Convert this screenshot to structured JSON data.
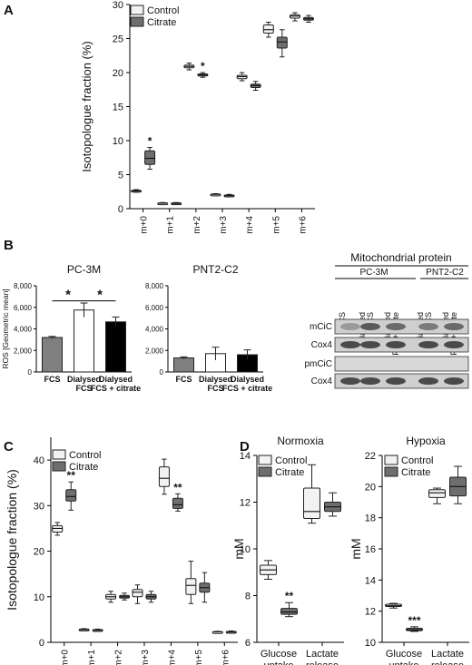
{
  "colors": {
    "control": "#f2f2f2",
    "citrate": "#6e6e6e",
    "fcs": "#808080",
    "dialysed": "#ffffff",
    "dialysed_citrate": "#000000"
  },
  "legend": {
    "control": "Control",
    "citrate": "Citrate"
  },
  "chart_data": [
    {
      "panel": "A",
      "type": "box",
      "ylabel": "Isotopologue fraction (%)",
      "ylim": [
        0,
        30
      ],
      "yticks": [
        0,
        5,
        10,
        15,
        20,
        25,
        30
      ],
      "categories": [
        "m+0",
        "m+1",
        "m+2",
        "m+3",
        "m+4",
        "m+5",
        "m+6"
      ],
      "legend_position": "top-left",
      "series": [
        {
          "name": "Control",
          "boxes": [
            {
              "min": 2.4,
              "q1": 2.5,
              "median": 2.6,
              "q3": 2.7,
              "max": 2.8
            },
            {
              "min": 0.7,
              "q1": 0.75,
              "median": 0.8,
              "q3": 0.85,
              "max": 0.9
            },
            {
              "min": 20.4,
              "q1": 20.7,
              "median": 20.9,
              "q3": 21.1,
              "max": 21.4
            },
            {
              "min": 1.9,
              "q1": 2.0,
              "median": 2.1,
              "q3": 2.15,
              "max": 2.2
            },
            {
              "min": 18.8,
              "q1": 19.1,
              "median": 19.4,
              "q3": 19.6,
              "max": 20.0
            },
            {
              "min": 25.2,
              "q1": 25.8,
              "median": 26.3,
              "q3": 27.0,
              "max": 27.4
            },
            {
              "min": 27.6,
              "q1": 28.0,
              "median": 28.3,
              "q3": 28.5,
              "max": 28.8
            }
          ]
        },
        {
          "name": "Citrate",
          "boxes": [
            {
              "min": 5.8,
              "q1": 6.5,
              "median": 7.4,
              "q3": 8.5,
              "max": 9.0
            },
            {
              "min": 0.7,
              "q1": 0.75,
              "median": 0.8,
              "q3": 0.85,
              "max": 0.9
            },
            {
              "min": 19.3,
              "q1": 19.5,
              "median": 19.7,
              "q3": 19.8,
              "max": 20.0
            },
            {
              "min": 1.8,
              "q1": 1.9,
              "median": 1.95,
              "q3": 2.0,
              "max": 2.1
            },
            {
              "min": 17.4,
              "q1": 17.8,
              "median": 18.1,
              "q3": 18.3,
              "max": 18.7
            },
            {
              "min": 22.3,
              "q1": 23.6,
              "median": 24.5,
              "q3": 25.2,
              "max": 26.3
            },
            {
              "min": 27.4,
              "q1": 27.7,
              "median": 27.9,
              "q3": 28.1,
              "max": 28.4
            }
          ]
        }
      ],
      "significance": [
        {
          "category": "m+0",
          "series": "Citrate",
          "label": "*"
        },
        {
          "category": "m+2",
          "series": "Citrate",
          "label": "*"
        }
      ]
    },
    {
      "panel": "B",
      "type": "bar",
      "title": "PC-3M",
      "ylabel": "ROS [Geometric mean]",
      "ylim": [
        0,
        8000
      ],
      "yticks": [
        0,
        2000,
        4000,
        6000,
        8000
      ],
      "ytick_labels": [
        "0",
        "2,000",
        "4,000",
        "6,000",
        "8,000"
      ],
      "categories": [
        "FCS",
        "Dialysed FCS",
        "Dialysed FCS + citrate"
      ],
      "values": [
        3200,
        5750,
        4650
      ],
      "errors": [
        100,
        650,
        450
      ],
      "significance": [
        {
          "from": 0,
          "to": 1,
          "label": "*"
        },
        {
          "from": 1,
          "to": 2,
          "label": "*"
        }
      ]
    },
    {
      "panel": "B",
      "type": "bar",
      "title": "PNT2-C2",
      "ylim": [
        0,
        8000
      ],
      "yticks": [
        0,
        2000,
        4000,
        6000,
        8000
      ],
      "ytick_labels": [
        "0",
        "2,000",
        "4,000",
        "6,000",
        "8,000"
      ],
      "categories": [
        "FCS",
        "Dialysed FCS",
        "Dialysed FCS + citrate"
      ],
      "values": [
        1300,
        1700,
        1600
      ],
      "errors": [
        100,
        600,
        450
      ]
    },
    {
      "panel": "C",
      "type": "box",
      "ylabel": "Isotopologue fraction (%)",
      "ylim": [
        0,
        45
      ],
      "yticks": [
        0,
        10,
        20,
        30,
        40
      ],
      "categories": [
        "m+0",
        "m+1",
        "m+2",
        "m+3",
        "m+4",
        "m+5",
        "m+6"
      ],
      "legend_position": "top-left",
      "series": [
        {
          "name": "Control",
          "boxes": [
            {
              "min": 23.5,
              "q1": 24.2,
              "median": 25.0,
              "q3": 25.6,
              "max": 26.3
            },
            {
              "min": 2.6,
              "q1": 2.7,
              "median": 2.8,
              "q3": 2.9,
              "max": 3.0
            },
            {
              "min": 8.8,
              "q1": 9.5,
              "median": 10.0,
              "q3": 10.5,
              "max": 11.2
            },
            {
              "min": 8.5,
              "q1": 10.0,
              "median": 11.0,
              "q3": 11.6,
              "max": 12.6
            },
            {
              "min": 32.5,
              "q1": 34.2,
              "median": 36.0,
              "q3": 38.5,
              "max": 40.2
            },
            {
              "min": 8.5,
              "q1": 10.5,
              "median": 12.5,
              "q3": 14.0,
              "max": 17.8
            },
            {
              "min": 2.1,
              "q1": 2.2,
              "median": 2.3,
              "q3": 2.35,
              "max": 2.4
            }
          ]
        },
        {
          "name": "Citrate",
          "boxes": [
            {
              "min": 29.0,
              "q1": 31.0,
              "median": 32.0,
              "q3": 33.5,
              "max": 35.2
            },
            {
              "min": 2.6,
              "q1": 2.7,
              "median": 2.75,
              "q3": 2.8,
              "max": 2.9
            },
            {
              "min": 9.3,
              "q1": 9.7,
              "median": 10.0,
              "q3": 10.3,
              "max": 10.8
            },
            {
              "min": 8.8,
              "q1": 9.5,
              "median": 10.0,
              "q3": 10.5,
              "max": 11.2
            },
            {
              "min": 28.8,
              "q1": 29.4,
              "median": 30.2,
              "q3": 31.6,
              "max": 32.6
            },
            {
              "min": 8.8,
              "q1": 11.0,
              "median": 12.0,
              "q3": 13.0,
              "max": 15.3
            },
            {
              "min": 2.2,
              "q1": 2.3,
              "median": 2.35,
              "q3": 2.4,
              "max": 2.5
            }
          ]
        }
      ],
      "significance": [
        {
          "category": "m+0",
          "series": "Citrate",
          "label": "**"
        },
        {
          "category": "m+4",
          "series": "Citrate",
          "label": "**"
        }
      ]
    },
    {
      "panel": "D",
      "type": "box",
      "title": "Normoxia",
      "ylabel": "mM",
      "ylim": [
        6,
        14
      ],
      "yticks": [
        6,
        8,
        10,
        12,
        14
      ],
      "categories": [
        "Glucose uptake",
        "Lactate release"
      ],
      "legend_position": "top-left",
      "series": [
        {
          "name": "Control",
          "boxes": [
            {
              "min": 8.7,
              "q1": 8.9,
              "median": 9.1,
              "q3": 9.3,
              "max": 9.5
            },
            {
              "min": 11.1,
              "q1": 11.3,
              "median": 11.6,
              "q3": 12.6,
              "max": 13.6
            }
          ]
        },
        {
          "name": "Citrate",
          "boxes": [
            {
              "min": 7.1,
              "q1": 7.2,
              "median": 7.3,
              "q3": 7.45,
              "max": 7.7
            },
            {
              "min": 11.4,
              "q1": 11.6,
              "median": 11.8,
              "q3": 12.0,
              "max": 12.4
            }
          ]
        }
      ],
      "significance": [
        {
          "category": "Glucose uptake",
          "series": "Citrate",
          "label": "**"
        }
      ]
    },
    {
      "panel": "D",
      "type": "box",
      "title": "Hypoxia",
      "ylabel": "mM",
      "ylim": [
        10,
        22
      ],
      "yticks": [
        10,
        12,
        14,
        16,
        18,
        20,
        22
      ],
      "categories": [
        "Glucose uptake",
        "Lactate release"
      ],
      "legend_position": "top-left",
      "series": [
        {
          "name": "Control",
          "boxes": [
            {
              "min": 12.2,
              "q1": 12.3,
              "median": 12.35,
              "q3": 12.45,
              "max": 12.5
            },
            {
              "min": 18.9,
              "q1": 19.3,
              "median": 19.6,
              "q3": 19.8,
              "max": 19.9
            }
          ]
        },
        {
          "name": "Citrate",
          "boxes": [
            {
              "min": 10.7,
              "q1": 10.75,
              "median": 10.8,
              "q3": 10.9,
              "max": 11.0
            },
            {
              "min": 18.9,
              "q1": 19.4,
              "median": 20.0,
              "q3": 20.6,
              "max": 21.3
            }
          ]
        }
      ],
      "significance": [
        {
          "category": "Glucose uptake",
          "series": "Citrate",
          "label": "***"
        }
      ]
    }
  ],
  "panels": {
    "a": "A",
    "b": "B",
    "c": "C",
    "d": "D"
  },
  "blot": {
    "title": "Mitochondrial protein",
    "groups": [
      "PC-3M",
      "PNT2-C2"
    ],
    "lanes": [
      "FCS",
      "Dialysed FCS",
      "Dialysed FCS+citrate",
      "Dialysed FCS",
      "Dialysed FCS+citrate"
    ],
    "rows": [
      "mCiC",
      "Cox4",
      "pmCiC",
      "Cox4"
    ]
  }
}
